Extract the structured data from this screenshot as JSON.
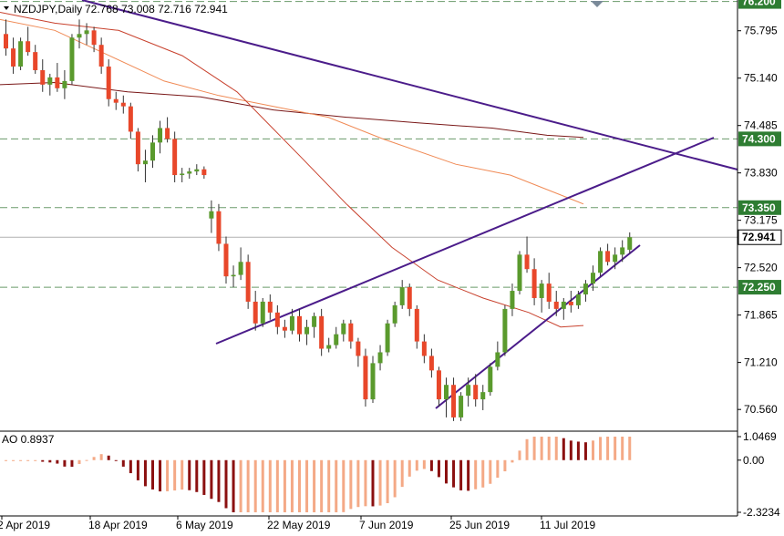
{
  "header": {
    "symbol_text": "NZDJPY,Daily",
    "ohlc_text": "72.768 73.008 72.716 72.941",
    "indicator_text": "AO 0.8937"
  },
  "colors": {
    "bull": "#5a9a2d",
    "bear": "#e8472a",
    "trendline": "#4b1c8a",
    "ma_fast": "#c8412d",
    "ma_mid": "#f08a55",
    "ma_slow": "#7a1818",
    "hline": "#6a9a6a",
    "ao_up": "#f4a986",
    "ao_down": "#8b1010",
    "price_line": "#b0b0b0",
    "tag_green": "#2e7d32",
    "tag_price": "#ffffff"
  },
  "chart_data": {
    "type": "candlestick",
    "x_labels": [
      "2 Apr 2019",
      "18 Apr 2019",
      "6 May 2019",
      "22 May 2019",
      "7 Jun 2019",
      "25 Jun 2019",
      "11 Jul 2019"
    ],
    "y_ticks": [
      "75.795",
      "75.140",
      "74.485",
      "73.830",
      "73.175",
      "72.520",
      "71.865",
      "71.210",
      "70.560"
    ],
    "ylim": [
      70.26,
      76.22
    ],
    "h_levels": [
      {
        "label": "76.200",
        "value": 76.2
      },
      {
        "label": "74.300",
        "value": 74.3
      },
      {
        "label": "73.350",
        "value": 73.35
      },
      {
        "label": "72.250",
        "value": 72.25
      }
    ],
    "last_price": {
      "label": "72.941",
      "value": 72.941
    },
    "candles": [
      [
        75.75,
        75.95,
        75.45,
        75.55
      ],
      [
        75.55,
        75.7,
        75.2,
        75.3
      ],
      [
        75.3,
        75.7,
        75.25,
        75.65
      ],
      [
        75.65,
        75.85,
        75.45,
        75.5
      ],
      [
        75.5,
        75.6,
        75.2,
        75.25
      ],
      [
        75.25,
        75.4,
        74.95,
        75.05
      ],
      [
        75.05,
        75.2,
        74.9,
        75.15
      ],
      [
        75.15,
        75.35,
        74.95,
        75.0
      ],
      [
        75.0,
        75.25,
        74.85,
        75.1
      ],
      [
        75.1,
        75.75,
        75.05,
        75.7
      ],
      [
        75.7,
        75.95,
        75.55,
        75.75
      ],
      [
        75.75,
        75.9,
        75.6,
        75.8
      ],
      [
        75.8,
        75.85,
        75.5,
        75.6
      ],
      [
        75.6,
        75.7,
        75.2,
        75.3
      ],
      [
        75.3,
        75.4,
        74.75,
        74.85
      ],
      [
        74.85,
        74.95,
        74.7,
        74.8
      ],
      [
        74.8,
        74.9,
        74.65,
        74.75
      ],
      [
        74.75,
        74.8,
        74.3,
        74.4
      ],
      [
        74.4,
        74.45,
        73.85,
        73.95
      ],
      [
        73.95,
        74.15,
        73.7,
        74.0
      ],
      [
        74.0,
        74.35,
        73.9,
        74.25
      ],
      [
        74.25,
        74.55,
        74.1,
        74.45
      ],
      [
        74.45,
        74.6,
        74.25,
        74.3
      ],
      [
        74.3,
        74.4,
        73.7,
        73.8
      ],
      [
        73.8,
        73.9,
        73.7,
        73.82
      ],
      [
        73.82,
        73.9,
        73.75,
        73.85
      ],
      [
        73.85,
        73.95,
        73.8,
        73.88
      ],
      [
        73.88,
        73.92,
        73.75,
        73.8
      ],
      [
        73.2,
        73.45,
        73.0,
        73.3
      ],
      [
        73.3,
        73.4,
        72.75,
        72.85
      ],
      [
        72.85,
        72.95,
        72.3,
        72.4
      ],
      [
        72.4,
        72.55,
        72.25,
        72.42
      ],
      [
        72.42,
        72.8,
        72.35,
        72.6
      ],
      [
        72.6,
        72.7,
        71.95,
        72.05
      ],
      [
        72.05,
        72.2,
        71.65,
        71.75
      ],
      [
        71.75,
        72.1,
        71.7,
        72.05
      ],
      [
        72.05,
        72.15,
        71.8,
        71.9
      ],
      [
        71.9,
        72.0,
        71.6,
        71.7
      ],
      [
        71.7,
        71.8,
        71.55,
        71.65
      ],
      [
        71.65,
        71.95,
        71.6,
        71.85
      ],
      [
        71.85,
        71.95,
        71.5,
        71.6
      ],
      [
        71.6,
        71.8,
        71.45,
        71.7
      ],
      [
        71.7,
        71.9,
        71.55,
        71.85
      ],
      [
        71.85,
        71.95,
        71.3,
        71.4
      ],
      [
        71.4,
        71.55,
        71.35,
        71.45
      ],
      [
        71.45,
        71.7,
        71.4,
        71.6
      ],
      [
        71.6,
        71.8,
        71.5,
        71.75
      ],
      [
        71.75,
        71.8,
        71.4,
        71.5
      ],
      [
        71.5,
        71.55,
        71.15,
        71.3
      ],
      [
        71.3,
        71.4,
        70.6,
        70.7
      ],
      [
        70.7,
        71.3,
        70.65,
        71.2
      ],
      [
        71.2,
        71.45,
        71.1,
        71.35
      ],
      [
        71.35,
        71.8,
        71.3,
        71.75
      ],
      [
        71.75,
        72.05,
        71.7,
        72.0
      ],
      [
        72.0,
        72.35,
        71.95,
        72.25
      ],
      [
        72.25,
        72.3,
        71.85,
        71.95
      ],
      [
        71.95,
        72.0,
        71.4,
        71.5
      ],
      [
        71.5,
        71.6,
        71.2,
        71.3
      ],
      [
        71.3,
        71.4,
        71.0,
        71.1
      ],
      [
        71.1,
        71.15,
        70.6,
        70.7
      ],
      [
        70.7,
        71.0,
        70.45,
        70.9
      ],
      [
        70.9,
        71.0,
        70.4,
        70.45
      ],
      [
        70.45,
        70.8,
        70.4,
        70.75
      ],
      [
        70.75,
        71.0,
        70.6,
        70.9
      ],
      [
        70.9,
        71.05,
        70.6,
        70.7
      ],
      [
        70.7,
        70.9,
        70.55,
        70.8
      ],
      [
        70.8,
        71.2,
        70.75,
        71.15
      ],
      [
        71.15,
        71.5,
        71.1,
        71.35
      ],
      [
        71.35,
        72.0,
        71.3,
        71.95
      ],
      [
        71.95,
        72.3,
        71.85,
        72.2
      ],
      [
        72.2,
        72.75,
        72.15,
        72.7
      ],
      [
        72.7,
        72.95,
        72.45,
        72.5
      ],
      [
        72.5,
        72.65,
        72.0,
        72.1
      ],
      [
        72.1,
        72.35,
        71.9,
        72.3
      ],
      [
        72.3,
        72.45,
        71.95,
        72.05
      ],
      [
        72.05,
        72.2,
        71.85,
        71.95
      ],
      [
        71.95,
        72.1,
        71.8,
        72.05
      ],
      [
        72.05,
        72.2,
        71.9,
        72.0
      ],
      [
        72.0,
        72.2,
        71.95,
        72.15
      ],
      [
        72.15,
        72.35,
        72.05,
        72.3
      ],
      [
        72.3,
        72.55,
        72.2,
        72.45
      ],
      [
        72.45,
        72.8,
        72.4,
        72.75
      ],
      [
        72.75,
        72.85,
        72.55,
        72.6
      ],
      [
        72.6,
        72.8,
        72.5,
        72.7
      ],
      [
        72.7,
        72.9,
        72.6,
        72.8
      ],
      [
        72.768,
        73.008,
        72.716,
        72.941
      ]
    ],
    "ao_ylim": [
      -2.3234,
      1.0469
    ],
    "ao_ticks": [
      "1.0469",
      "0.00",
      "-2.3234"
    ]
  }
}
